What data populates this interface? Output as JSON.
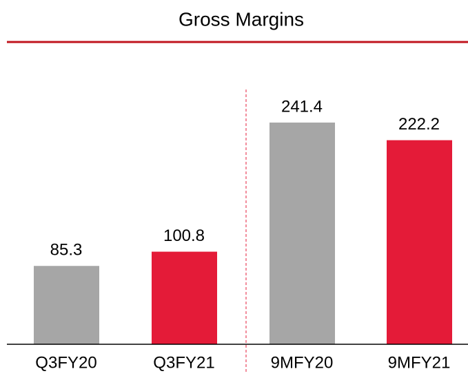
{
  "chart_data": {
    "type": "bar",
    "title": "Gross Margins",
    "categories": [
      "Q3FY20",
      "Q3FY21",
      "9MFY20",
      "9MFY21"
    ],
    "values": [
      85.3,
      100.8,
      241.4,
      222.2
    ],
    "colors": [
      "#a6a6a6",
      "#e41b38",
      "#a6a6a6",
      "#e41b38"
    ]
  }
}
